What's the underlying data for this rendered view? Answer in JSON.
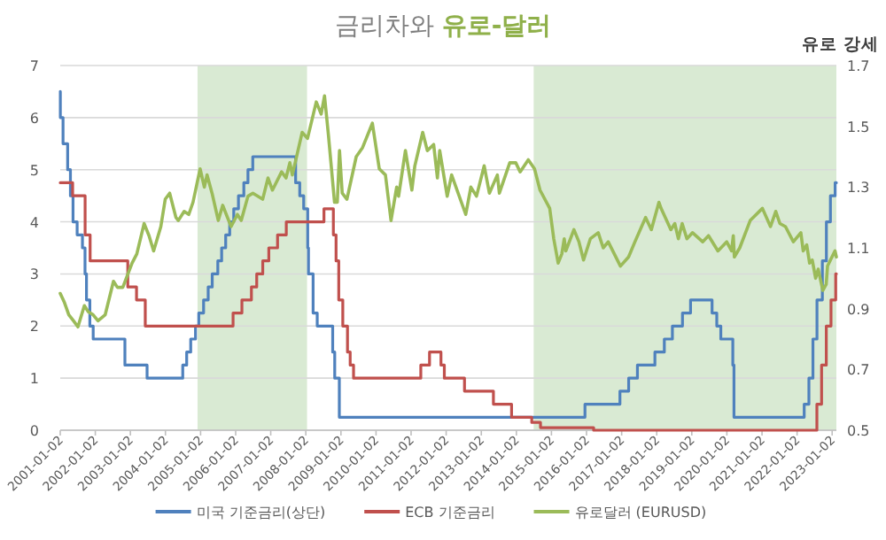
{
  "chart_data": {
    "type": "step",
    "title": "금리차와 **유로-달러**",
    "y2label": "유로 강세",
    "xlim": [
      "2001-01-02",
      "2023-02-15"
    ],
    "xticks": [
      "2001-01-02",
      "2002-01-02",
      "2003-01-02",
      "2004-01-02",
      "2005-01-02",
      "2006-01-02",
      "2007-01-02",
      "2008-01-02",
      "2009-01-02",
      "2010-01-02",
      "2011-01-02",
      "2012-01-02",
      "2013-01-02",
      "2014-01-02",
      "2015-01-02",
      "2016-01-02",
      "2017-01-02",
      "2018-01-02",
      "2019-01-02",
      "2020-01-02",
      "2021-01-02",
      "2022-01-02",
      "2023-01-02"
    ],
    "ylim": [
      0,
      7
    ],
    "yticks": [
      0,
      1,
      2,
      3,
      4,
      5,
      6,
      7
    ],
    "y2lim": [
      0.5,
      1.7
    ],
    "y2ticks": [
      0.5,
      0.7,
      0.9,
      1.1,
      1.3,
      1.5,
      1.7
    ],
    "grid": "y",
    "legend": "bottom",
    "bands": [
      {
        "axis": "x",
        "from": "2004-12-01",
        "to": "2008-01-15",
        "color": "#d9ead3"
      },
      {
        "axis": "x",
        "from": "2014-07-01",
        "to": "2023-02-15",
        "color": "#d9ead3"
      }
    ],
    "series": [
      {
        "name": "미국 기준금리(상단)",
        "color": "#4f81bd",
        "x": [
          "2001-01-02",
          "2001-01-03",
          "2001-01-31",
          "2001-03-20",
          "2001-04-18",
          "2001-05-15",
          "2001-06-27",
          "2001-08-21",
          "2001-09-17",
          "2001-10-02",
          "2001-11-06",
          "2001-12-11",
          "2002-11-06",
          "2003-06-25",
          "2004-06-30",
          "2004-08-10",
          "2004-09-21",
          "2004-11-10",
          "2004-12-14",
          "2005-02-02",
          "2005-03-22",
          "2005-05-03",
          "2005-06-30",
          "2005-08-09",
          "2005-09-20",
          "2005-11-01",
          "2005-12-13",
          "2006-01-31",
          "2006-03-28",
          "2006-05-10",
          "2006-06-29",
          "2007-09-18",
          "2007-10-31",
          "2007-12-11",
          "2008-01-22",
          "2008-01-30",
          "2008-03-18",
          "2008-04-30",
          "2008-10-08",
          "2008-10-29",
          "2008-12-16",
          "2015-12-17",
          "2016-12-15",
          "2017-03-16",
          "2017-06-15",
          "2017-12-14",
          "2018-03-22",
          "2018-06-14",
          "2018-09-27",
          "2018-12-20",
          "2019-08-01",
          "2019-09-19",
          "2019-10-31",
          "2020-03-04",
          "2020-03-16",
          "2022-03-17",
          "2022-05-05",
          "2022-06-16",
          "2022-07-28",
          "2022-09-22",
          "2022-11-03",
          "2022-12-15",
          "2023-02-02",
          "2023-02-15"
        ],
        "values": [
          6.5,
          6.0,
          5.5,
          5.0,
          4.5,
          4.0,
          3.75,
          3.5,
          3.0,
          2.5,
          2.0,
          1.75,
          1.25,
          1.0,
          1.25,
          1.5,
          1.75,
          2.0,
          2.25,
          2.5,
          2.75,
          3.0,
          3.25,
          3.5,
          3.75,
          4.0,
          4.25,
          4.5,
          4.75,
          5.0,
          5.25,
          4.75,
          4.5,
          4.25,
          3.5,
          3.0,
          2.25,
          2.0,
          1.5,
          1.0,
          0.25,
          0.5,
          0.75,
          1.0,
          1.25,
          1.5,
          1.75,
          2.0,
          2.25,
          2.5,
          2.25,
          2.0,
          1.75,
          1.25,
          0.25,
          0.5,
          1.0,
          1.75,
          2.5,
          3.25,
          4.0,
          4.5,
          4.75,
          4.75
        ]
      },
      {
        "name": "ECB 기준금리",
        "color": "#c0504d",
        "x": [
          "2001-01-02",
          "2001-05-11",
          "2001-09-18",
          "2001-11-09",
          "2002-12-06",
          "2003-03-07",
          "2003-06-06",
          "2005-12-06",
          "2006-03-08",
          "2006-06-15",
          "2006-08-09",
          "2006-10-11",
          "2006-12-13",
          "2007-03-14",
          "2007-06-13",
          "2008-07-09",
          "2008-10-15",
          "2008-11-12",
          "2008-12-10",
          "2009-01-21",
          "2009-03-11",
          "2009-04-08",
          "2009-05-13",
          "2011-04-13",
          "2011-07-13",
          "2011-11-09",
          "2011-12-14",
          "2012-07-11",
          "2013-05-08",
          "2013-11-13",
          "2014-06-11",
          "2014-09-10",
          "2016-03-16",
          "2022-07-27",
          "2022-09-14",
          "2022-11-02",
          "2022-12-21",
          "2023-02-08",
          "2023-02-15"
        ],
        "values": [
          4.75,
          4.5,
          3.75,
          3.25,
          2.75,
          2.5,
          2.0,
          2.25,
          2.5,
          2.75,
          3.0,
          3.25,
          3.5,
          3.75,
          4.0,
          4.25,
          3.75,
          3.25,
          2.5,
          2.0,
          1.5,
          1.25,
          1.0,
          1.25,
          1.5,
          1.25,
          1.0,
          0.75,
          0.5,
          0.25,
          0.15,
          0.05,
          0.0,
          0.5,
          1.25,
          2.0,
          2.5,
          3.0,
          3.0
        ]
      },
      {
        "name": "유로달러 (EURUSD)",
        "color": "#9bbb59",
        "type": "line",
        "axis": "y2",
        "x": [
          "2001-01-02",
          "2001-02-15",
          "2001-04-01",
          "2001-05-20",
          "2001-07-05",
          "2001-09-10",
          "2001-10-20",
          "2001-12-10",
          "2002-01-30",
          "2002-04-15",
          "2002-07-10",
          "2002-08-20",
          "2002-10-15",
          "2003-01-20",
          "2003-03-10",
          "2003-05-25",
          "2003-07-15",
          "2003-09-01",
          "2003-11-15",
          "2003-12-31",
          "2004-02-15",
          "2004-04-20",
          "2004-05-15",
          "2004-07-15",
          "2004-09-01",
          "2004-10-15",
          "2004-12-28",
          "2005-02-10",
          "2005-03-10",
          "2005-05-01",
          "2005-07-05",
          "2005-08-20",
          "2005-11-15",
          "2006-01-20",
          "2006-03-01",
          "2006-05-10",
          "2006-06-30",
          "2006-10-10",
          "2006-12-05",
          "2007-01-20",
          "2007-04-25",
          "2007-06-10",
          "2007-07-20",
          "2007-08-15",
          "2007-11-25",
          "2008-01-20",
          "2008-04-20",
          "2008-06-10",
          "2008-07-15",
          "2008-08-25",
          "2008-10-27",
          "2008-11-25",
          "2008-12-18",
          "2009-01-15",
          "2009-03-05",
          "2009-06-10",
          "2009-08-15",
          "2009-11-25",
          "2010-02-05",
          "2010-04-10",
          "2010-06-07",
          "2010-08-05",
          "2010-08-25",
          "2010-11-04",
          "2011-01-10",
          "2011-02-10",
          "2011-05-03",
          "2011-06-20",
          "2011-08-25",
          "2011-10-03",
          "2011-10-27",
          "2012-01-13",
          "2012-02-28",
          "2012-07-24",
          "2012-09-15",
          "2012-11-13",
          "2013-02-01",
          "2013-03-27",
          "2013-06-18",
          "2013-07-09",
          "2013-10-25",
          "2013-12-27",
          "2014-02-10",
          "2014-05-06",
          "2014-07-10",
          "2014-09-05",
          "2014-12-15",
          "2015-01-26",
          "2015-03-13",
          "2015-04-20",
          "2015-05-15",
          "2015-06-01",
          "2015-08-24",
          "2015-10-15",
          "2015-12-02",
          "2016-02-11",
          "2016-05-03",
          "2016-06-24",
          "2016-08-15",
          "2016-12-20",
          "2017-03-15",
          "2017-05-20",
          "2017-09-08",
          "2017-11-07",
          "2018-01-25",
          "2018-02-16",
          "2018-05-29",
          "2018-07-09",
          "2018-08-15",
          "2018-09-24",
          "2018-11-12",
          "2019-01-10",
          "2019-04-25",
          "2019-06-25",
          "2019-10-01",
          "2019-12-31",
          "2020-02-20",
          "2020-03-09",
          "2020-03-20",
          "2020-05-15",
          "2020-09-01",
          "2021-01-06",
          "2021-03-31",
          "2021-05-25",
          "2021-07-07",
          "2021-09-03",
          "2021-11-24",
          "2022-02-10",
          "2022-03-07",
          "2022-04-12",
          "2022-05-12",
          "2022-06-09",
          "2022-07-14",
          "2022-08-10",
          "2022-09-27",
          "2022-11-01",
          "2022-11-15",
          "2022-12-15",
          "2023-02-01",
          "2023-02-15"
        ],
        "values": [
          0.95,
          0.92,
          0.88,
          0.86,
          0.84,
          0.91,
          0.89,
          0.88,
          0.86,
          0.88,
          0.99,
          0.97,
          0.97,
          1.05,
          1.08,
          1.18,
          1.14,
          1.09,
          1.17,
          1.26,
          1.28,
          1.2,
          1.19,
          1.22,
          1.21,
          1.25,
          1.36,
          1.3,
          1.34,
          1.28,
          1.19,
          1.24,
          1.17,
          1.21,
          1.19,
          1.27,
          1.28,
          1.26,
          1.33,
          1.29,
          1.35,
          1.33,
          1.38,
          1.34,
          1.48,
          1.46,
          1.58,
          1.54,
          1.6,
          1.47,
          1.25,
          1.25,
          1.42,
          1.28,
          1.26,
          1.4,
          1.43,
          1.51,
          1.36,
          1.34,
          1.19,
          1.3,
          1.27,
          1.42,
          1.29,
          1.37,
          1.48,
          1.42,
          1.44,
          1.33,
          1.42,
          1.27,
          1.34,
          1.21,
          1.3,
          1.27,
          1.37,
          1.28,
          1.34,
          1.28,
          1.38,
          1.38,
          1.35,
          1.39,
          1.36,
          1.29,
          1.23,
          1.13,
          1.05,
          1.08,
          1.13,
          1.09,
          1.16,
          1.12,
          1.06,
          1.13,
          1.15,
          1.1,
          1.12,
          1.04,
          1.07,
          1.12,
          1.2,
          1.16,
          1.25,
          1.23,
          1.16,
          1.18,
          1.13,
          1.18,
          1.13,
          1.15,
          1.12,
          1.14,
          1.09,
          1.12,
          1.09,
          1.14,
          1.07,
          1.1,
          1.19,
          1.23,
          1.17,
          1.22,
          1.18,
          1.17,
          1.12,
          1.15,
          1.09,
          1.11,
          1.05,
          1.06,
          1.0,
          1.03,
          0.96,
          0.98,
          1.04,
          1.06,
          1.09,
          1.07
        ]
      }
    ]
  }
}
